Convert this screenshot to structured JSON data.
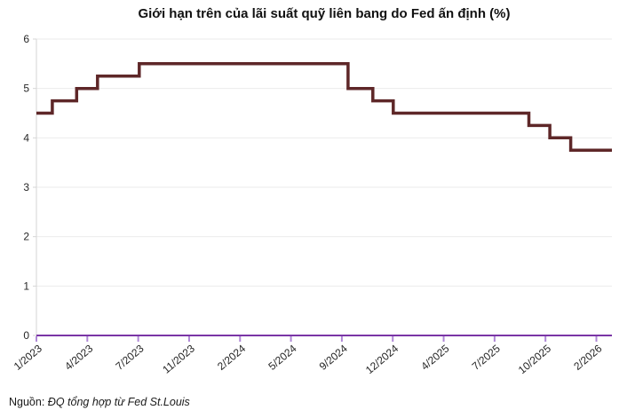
{
  "title": "Giới hạn trên của lãi suất quỹ liên bang do Fed ấn định (%)",
  "source": {
    "prefix": "Nguồn:",
    "text": "ĐQ tổng hợp từ Fed St.Louis"
  },
  "chart_data": {
    "type": "line",
    "subtype": "step",
    "title": "Giới hạn trên của lãi suất quỹ liên bang do Fed ấn định (%)",
    "xlabel": "",
    "ylabel": "",
    "ylim": [
      0,
      6
    ],
    "y_ticks": [
      0,
      1,
      2,
      3,
      4,
      5,
      6
    ],
    "x_tick_labels": [
      "1/2023",
      "4/2023",
      "7/2023",
      "11/2023",
      "2/2024",
      "5/2024",
      "9/2024",
      "12/2024",
      "4/2025",
      "7/2025",
      "10/2025",
      "2/2026"
    ],
    "x_domain": [
      "2023-01-01",
      "2026-03-04"
    ],
    "series_name": "Fed funds upper limit (%)",
    "steps": [
      {
        "date": "2023-01-01",
        "value": 4.5
      },
      {
        "date": "2023-02-02",
        "value": 4.75
      },
      {
        "date": "2023-03-23",
        "value": 5.0
      },
      {
        "date": "2023-05-04",
        "value": 5.25
      },
      {
        "date": "2023-07-27",
        "value": 5.5
      },
      {
        "date": "2024-09-19",
        "value": 5.0
      },
      {
        "date": "2024-11-08",
        "value": 4.75
      },
      {
        "date": "2024-12-19",
        "value": 4.5
      },
      {
        "date": "2025-09-18",
        "value": 4.25
      },
      {
        "date": "2025-10-30",
        "value": 4.0
      },
      {
        "date": "2025-12-11",
        "value": 3.75
      }
    ],
    "end_value": 3.75,
    "grid": "horizontal-only",
    "legend": false,
    "colors": {
      "line": "#5e2728",
      "x_axis": "#7a35a6",
      "x_tick": "#b089d6",
      "gridline": "#ebebeb",
      "y_axis": "#d6d6d6",
      "label_text": "#262626"
    }
  }
}
